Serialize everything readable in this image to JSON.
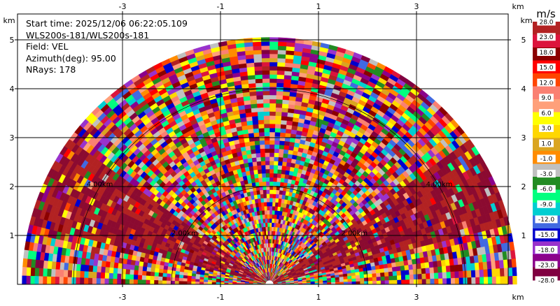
{
  "chart_data": {
    "type": "heatmap",
    "subtype": "ppi-radar-velocity",
    "info": {
      "start_time": "Start time: 2025/12/06 06:22:05.109",
      "instrument": "WLS200s-181/WLS200s-181",
      "field": "Field: VEL",
      "azimuth": "Azimuth(deg): 95.00",
      "nrays": "NRays: 178"
    },
    "x_axis": {
      "unit": "km",
      "ticks": [
        -3,
        -1,
        1,
        3
      ],
      "range": [
        -5.4,
        5.4
      ]
    },
    "y_axis": {
      "unit": "km",
      "ticks": [
        1,
        2,
        3,
        4,
        5
      ],
      "range": [
        0,
        6
      ]
    },
    "grid": true,
    "range_rings_km": [
      2,
      4
    ],
    "range_ring_labels": [
      "2.00km",
      "4.00km"
    ],
    "max_range_km": 5.05,
    "colorbar": {
      "title": "m/s",
      "ticks": [
        "28.0",
        "23.0",
        "18.0",
        "15.0",
        "12.0",
        "9.0",
        "6.0",
        "3.0",
        "1.0",
        "-1.0",
        "-3.0",
        "-6.0",
        "-9.0",
        "-12.0",
        "-15.0",
        "-18.0",
        "-23.0",
        "-28.0"
      ],
      "colors": [
        "#b22222",
        "#dc143c",
        "#8b0000",
        "#ff0000",
        "#ff4500",
        "#fa8072",
        "#ffa07a",
        "#ffff00",
        "#ffd700",
        "#daa520",
        "#ff8c00",
        "#c0c0c0",
        "#228b22",
        "#00ff7f",
        "#00ced1",
        "#4169e1",
        "#0000cd",
        "#9932cc",
        "#8b008b",
        "#800040"
      ]
    }
  }
}
